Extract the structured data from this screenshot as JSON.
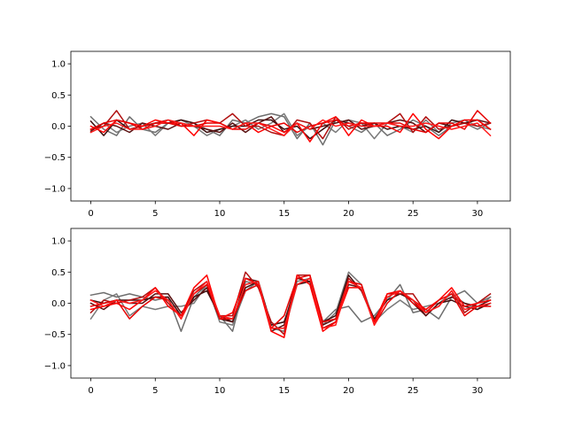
{
  "chart_data": [
    {
      "type": "line",
      "title": "",
      "xlabel": "",
      "ylabel": "",
      "xlim": [
        -1.55,
        32.55
      ],
      "ylim": [
        -1.2,
        1.2
      ],
      "xticks": [
        0,
        5,
        10,
        15,
        20,
        25,
        30
      ],
      "yticks": [
        -1.0,
        -0.5,
        0.0,
        0.5,
        1.0
      ],
      "xtick_labels": [
        "0",
        "5",
        "10",
        "15",
        "20",
        "25",
        "30"
      ],
      "ytick_labels": [
        "−1.0",
        "−0.5",
        "0.0",
        "0.5",
        "1.0"
      ],
      "grid": false,
      "x": [
        0,
        1,
        2,
        3,
        4,
        5,
        6,
        7,
        8,
        9,
        10,
        11,
        12,
        13,
        14,
        15,
        16,
        17,
        18,
        19,
        20,
        21,
        22,
        23,
        24,
        25,
        26,
        27,
        28,
        29,
        30,
        31
      ],
      "series": [
        {
          "color": "#6e6e6e",
          "values": [
            0.15,
            -0.05,
            -0.15,
            0.15,
            -0.05,
            -0.1,
            0.05,
            0.1,
            0.05,
            -0.05,
            -0.15,
            0.1,
            0.05,
            0.15,
            0.2,
            0.15,
            -0.2,
            0.05,
            -0.3,
            0.1,
            0.0,
            -0.1,
            0.05,
            -0.15,
            -0.05,
            0.1,
            0.0,
            -0.15,
            0.0,
            0.05,
            -0.05,
            0.05
          ]
        },
        {
          "color": "#7a7a7a",
          "values": [
            -0.05,
            0.05,
            -0.1,
            0.0,
            0.05,
            -0.15,
            0.05,
            0.1,
            0.0,
            -0.15,
            -0.05,
            0.0,
            0.1,
            -0.05,
            0.05,
            0.2,
            -0.15,
            0.0,
            0.05,
            -0.1,
            0.1,
            0.05,
            -0.2,
            0.05,
            0.0,
            -0.1,
            0.1,
            -0.1,
            0.05,
            0.1,
            0.0,
            -0.05
          ]
        },
        {
          "color": "#3d0e0e",
          "values": [
            0.08,
            -0.15,
            0.1,
            -0.05,
            0.0,
            0.05,
            0.05,
            0.1,
            0.05,
            -0.1,
            -0.05,
            0.0,
            0.0,
            0.1,
            0.1,
            -0.05,
            0.0,
            -0.2,
            -0.05,
            0.1,
            0.05,
            0.0,
            0.05,
            -0.05,
            0.0,
            -0.05,
            0.0,
            -0.1,
            0.1,
            0.05,
            0.1,
            -0.05
          ]
        },
        {
          "color": "#5a1010",
          "values": [
            -0.08,
            0.05,
            0.0,
            -0.1,
            0.05,
            0.0,
            -0.05,
            0.05,
            0.0,
            -0.05,
            -0.1,
            0.05,
            -0.1,
            0.05,
            0.15,
            -0.1,
            0.05,
            -0.05,
            0.0,
            0.05,
            0.1,
            -0.05,
            0.0,
            0.05,
            0.1,
            0.05,
            -0.1,
            0.05,
            0.0,
            0.05,
            0.1,
            0.05
          ]
        },
        {
          "color": "#b01010",
          "values": [
            -0.05,
            0.0,
            0.25,
            -0.05,
            0.0,
            0.05,
            0.1,
            0.0,
            0.05,
            0.1,
            0.05,
            0.2,
            0.0,
            0.0,
            -0.1,
            -0.15,
            0.1,
            0.05,
            -0.2,
            0.15,
            -0.05,
            0.05,
            0.0,
            0.05,
            0.2,
            -0.1,
            0.15,
            -0.05,
            0.0,
            0.05,
            0.0,
            0.05
          ]
        },
        {
          "color": "#ff0000",
          "values": [
            0.0,
            -0.1,
            0.1,
            0.05,
            0.0,
            0.1,
            0.05,
            0.05,
            -0.15,
            0.1,
            0.05,
            -0.05,
            0.05,
            -0.1,
            0.0,
            -0.1,
            0.05,
            -0.25,
            0.05,
            0.15,
            -0.15,
            0.1,
            0.0,
            0.0,
            -0.1,
            0.2,
            -0.05,
            -0.2,
            0.0,
            0.1,
            0.1,
            -0.05
          ]
        },
        {
          "color": "#e60000",
          "values": [
            -0.05,
            0.05,
            0.1,
            0.05,
            -0.05,
            0.05,
            0.05,
            0.0,
            0.0,
            0.05,
            0.05,
            -0.05,
            -0.05,
            0.05,
            0.0,
            0.05,
            -0.1,
            0.0,
            0.05,
            0.1,
            0.0,
            0.05,
            0.05,
            0.05,
            0.05,
            -0.05,
            -0.1,
            0.05,
            0.05,
            -0.05,
            0.25,
            0.05
          ]
        },
        {
          "color": "#ff1a1a",
          "values": [
            -0.1,
            0.0,
            0.05,
            -0.05,
            -0.05,
            0.0,
            0.1,
            0.05,
            0.0,
            0.0,
            0.0,
            -0.05,
            0.05,
            0.05,
            -0.05,
            -0.15,
            0.05,
            -0.05,
            0.1,
            0.0,
            0.05,
            0.0,
            0.0,
            0.05,
            0.0,
            0.0,
            0.05,
            0.0,
            -0.05,
            0.0,
            0.05,
            -0.15
          ]
        }
      ]
    },
    {
      "type": "line",
      "title": "",
      "xlabel": "",
      "ylabel": "",
      "xlim": [
        -1.55,
        32.55
      ],
      "ylim": [
        -1.2,
        1.2
      ],
      "xticks": [
        0,
        5,
        10,
        15,
        20,
        25,
        30
      ],
      "yticks": [
        -1.0,
        -0.5,
        0.0,
        0.5,
        1.0
      ],
      "xtick_labels": [
        "0",
        "5",
        "10",
        "15",
        "20",
        "25",
        "30"
      ],
      "ytick_labels": [
        "−1.0",
        "−0.5",
        "0.0",
        "0.5",
        "1.0"
      ],
      "grid": false,
      "x": [
        0,
        1,
        2,
        3,
        4,
        5,
        6,
        7,
        8,
        9,
        10,
        11,
        12,
        13,
        14,
        15,
        16,
        17,
        18,
        19,
        20,
        21,
        22,
        23,
        24,
        25,
        26,
        27,
        28,
        29,
        30,
        31
      ],
      "series": [
        {
          "color": "#6e6e6e",
          "values": [
            0.13,
            0.17,
            0.1,
            0.15,
            0.1,
            0.05,
            0.1,
            -0.45,
            0.1,
            0.3,
            -0.2,
            -0.45,
            0.35,
            0.3,
            -0.4,
            -0.45,
            0.3,
            0.4,
            -0.3,
            -0.1,
            -0.05,
            -0.3,
            -0.2,
            0.05,
            0.3,
            -0.15,
            -0.1,
            -0.25,
            0.1,
            0.2,
            0.0,
            0.1
          ]
        },
        {
          "color": "#7a7a7a",
          "values": [
            -0.25,
            0.05,
            0.15,
            -0.2,
            -0.05,
            -0.1,
            -0.05,
            -0.05,
            0.0,
            0.3,
            -0.3,
            -0.35,
            0.2,
            0.35,
            -0.35,
            -0.3,
            0.35,
            0.4,
            -0.35,
            -0.15,
            0.5,
            0.3,
            -0.3,
            -0.1,
            0.05,
            -0.1,
            -0.05,
            0.0,
            0.15,
            0.0,
            -0.1,
            0.1
          ]
        },
        {
          "color": "#3d0e0e",
          "values": [
            0.05,
            0.0,
            0.05,
            0.05,
            0.05,
            0.1,
            0.1,
            -0.2,
            0.1,
            0.2,
            -0.2,
            -0.3,
            0.25,
            0.35,
            -0.35,
            -0.3,
            0.3,
            0.35,
            -0.3,
            -0.2,
            0.45,
            0.2,
            -0.25,
            0.05,
            0.15,
            0.05,
            -0.2,
            0.0,
            0.05,
            -0.05,
            -0.1,
            0.0
          ]
        },
        {
          "color": "#5a1010",
          "values": [
            0.0,
            -0.1,
            0.05,
            0.0,
            0.0,
            0.15,
            0.15,
            -0.15,
            0.05,
            0.25,
            -0.25,
            -0.3,
            0.4,
            0.35,
            -0.45,
            -0.35,
            0.4,
            0.35,
            -0.35,
            -0.25,
            0.3,
            0.25,
            -0.3,
            0.1,
            0.2,
            0.0,
            -0.2,
            0.0,
            0.1,
            0.0,
            -0.05,
            0.05
          ]
        },
        {
          "color": "#b01010",
          "values": [
            -0.15,
            0.05,
            0.0,
            0.05,
            0.1,
            0.25,
            0.0,
            -0.2,
            0.2,
            0.35,
            -0.2,
            -0.2,
            0.5,
            0.25,
            -0.3,
            -0.5,
            0.45,
            0.45,
            -0.4,
            -0.3,
            0.4,
            0.2,
            -0.3,
            0.15,
            0.15,
            0.15,
            -0.15,
            -0.05,
            0.2,
            -0.15,
            0.0,
            0.15
          ]
        },
        {
          "color": "#ff0000",
          "values": [
            -0.1,
            -0.05,
            0.0,
            -0.1,
            0.05,
            0.25,
            -0.05,
            -0.2,
            0.25,
            0.45,
            -0.25,
            -0.15,
            0.4,
            0.3,
            -0.45,
            -0.55,
            0.45,
            0.3,
            -0.45,
            -0.3,
            0.25,
            0.25,
            -0.3,
            0.15,
            0.2,
            0.05,
            -0.1,
            0.05,
            0.25,
            -0.05,
            0.0,
            0.05
          ]
        },
        {
          "color": "#e60000",
          "values": [
            -0.05,
            0.0,
            0.05,
            -0.25,
            -0.05,
            0.1,
            0.05,
            -0.25,
            0.15,
            0.3,
            -0.25,
            -0.25,
            0.2,
            0.3,
            -0.4,
            -0.2,
            0.4,
            0.45,
            -0.3,
            -0.25,
            0.35,
            0.3,
            -0.35,
            0.0,
            0.2,
            0.0,
            -0.15,
            0.05,
            0.15,
            -0.2,
            -0.05,
            -0.05
          ]
        },
        {
          "color": "#ff1a1a",
          "values": [
            0.05,
            -0.05,
            0.05,
            0.0,
            0.05,
            0.2,
            0.05,
            -0.25,
            0.15,
            0.35,
            -0.2,
            -0.25,
            0.3,
            0.35,
            -0.4,
            -0.4,
            0.3,
            0.4,
            -0.4,
            -0.35,
            0.35,
            0.25,
            -0.35,
            0.1,
            0.2,
            0.05,
            -0.15,
            -0.05,
            0.2,
            -0.1,
            -0.05,
            0.0
          ]
        }
      ]
    }
  ]
}
